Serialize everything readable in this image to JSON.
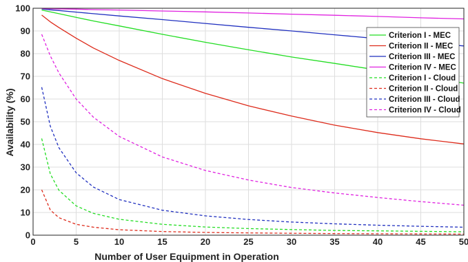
{
  "chart_data": {
    "type": "line",
    "xlabel": "Number of User Equipment in Operation",
    "ylabel": "Availability (%)",
    "xlim": [
      0,
      50
    ],
    "ylim": [
      0,
      100
    ],
    "xticks": [
      0,
      5,
      10,
      15,
      20,
      25,
      30,
      35,
      40,
      45,
      50
    ],
    "yticks": [
      0,
      10,
      20,
      30,
      40,
      50,
      60,
      70,
      80,
      90,
      100
    ],
    "grid": true,
    "legend_position": "top-right",
    "x": [
      1,
      2,
      3,
      5,
      7,
      10,
      15,
      20,
      25,
      30,
      35,
      40,
      45,
      50
    ],
    "series": [
      {
        "name": "Criterion I - MEC",
        "color": "#22dd22",
        "style": "solid",
        "values": [
          99.2,
          98.4,
          97.6,
          96.0,
          94.4,
          92.2,
          88.5,
          85.0,
          81.7,
          78.5,
          75.7,
          72.8,
          70.0,
          67.0
        ]
      },
      {
        "name": "Criterion II - MEC",
        "color": "#dd2a1a",
        "style": "solid",
        "values": [
          97.0,
          94.0,
          91.5,
          86.8,
          82.5,
          77.0,
          69.0,
          62.5,
          57.0,
          52.5,
          48.5,
          45.2,
          42.5,
          40.2
        ]
      },
      {
        "name": "Criterion III - MEC",
        "color": "#1f2fbf",
        "style": "solid",
        "values": [
          99.7,
          99.3,
          99.0,
          98.3,
          97.6,
          96.6,
          95.0,
          93.3,
          91.6,
          90.0,
          88.3,
          86.6,
          85.0,
          83.4
        ]
      },
      {
        "name": "Criterion IV - MEC",
        "color": "#e020e0",
        "style": "solid",
        "values": [
          99.9,
          99.8,
          99.7,
          99.6,
          99.4,
          99.2,
          98.8,
          98.4,
          97.9,
          97.4,
          96.9,
          96.4,
          95.8,
          95.3
        ]
      },
      {
        "name": "Criterion I - Cloud",
        "color": "#22dd22",
        "style": "dashed",
        "values": [
          42.6,
          27.0,
          19.8,
          12.9,
          9.6,
          7.0,
          4.8,
          3.6,
          2.9,
          2.5,
          2.1,
          1.9,
          1.7,
          1.5
        ]
      },
      {
        "name": "Criterion II - Cloud",
        "color": "#dd2a1a",
        "style": "dashed",
        "values": [
          20.0,
          11.1,
          7.7,
          4.8,
          3.5,
          2.4,
          1.6,
          1.2,
          1.0,
          0.85,
          0.7,
          0.6,
          0.55,
          0.5
        ]
      },
      {
        "name": "Criterion III - Cloud",
        "color": "#1f2fbf",
        "style": "dashed",
        "values": [
          65.2,
          48.0,
          38.5,
          27.5,
          21.2,
          15.7,
          11.0,
          8.5,
          6.9,
          5.8,
          5.0,
          4.4,
          3.9,
          3.5
        ]
      },
      {
        "name": "Criterion IV - Cloud",
        "color": "#e020e0",
        "style": "dashed",
        "values": [
          88.5,
          79.0,
          71.5,
          60.0,
          52.0,
          43.5,
          34.5,
          28.5,
          24.3,
          21.0,
          18.6,
          16.6,
          14.8,
          13.2
        ]
      }
    ]
  }
}
